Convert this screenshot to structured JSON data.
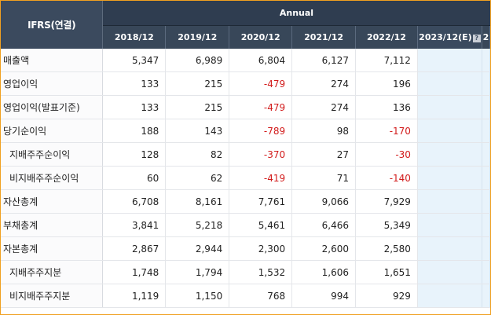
{
  "header": {
    "corner_label": "IFRS(연결)",
    "group_label": "Annual",
    "years": [
      "2018/12",
      "2019/12",
      "2020/12",
      "2021/12",
      "2022/12",
      "2023/12(E)",
      "2"
    ],
    "help_icon": "question-icon"
  },
  "rows": [
    {
      "label": "매출액",
      "values": [
        "5,347",
        "6,989",
        "6,804",
        "6,127",
        "7,112"
      ],
      "sub": false
    },
    {
      "label": "영업이익",
      "values": [
        "133",
        "215",
        "-479",
        "274",
        "196"
      ],
      "sub": false
    },
    {
      "label": "영업이익(발표기준)",
      "values": [
        "133",
        "215",
        "-479",
        "274",
        "136"
      ],
      "sub": false
    },
    {
      "label": "당기순이익",
      "values": [
        "188",
        "143",
        "-789",
        "98",
        "-170"
      ],
      "sub": false
    },
    {
      "label": "지배주주순이익",
      "values": [
        "128",
        "82",
        "-370",
        "27",
        "-30"
      ],
      "sub": true
    },
    {
      "label": "비지배주주순이익",
      "values": [
        "60",
        "62",
        "-419",
        "71",
        "-140"
      ],
      "sub": true
    },
    {
      "label": "자산총계",
      "values": [
        "6,708",
        "8,161",
        "7,761",
        "9,066",
        "7,929"
      ],
      "sub": false
    },
    {
      "label": "부채총계",
      "values": [
        "3,841",
        "5,218",
        "5,461",
        "6,466",
        "5,349"
      ],
      "sub": false
    },
    {
      "label": "자본총계",
      "values": [
        "2,867",
        "2,944",
        "2,300",
        "2,600",
        "2,580"
      ],
      "sub": false
    },
    {
      "label": "지배주주지분",
      "values": [
        "1,748",
        "1,794",
        "1,532",
        "1,606",
        "1,651"
      ],
      "sub": true
    },
    {
      "label": "비지배주주지분",
      "values": [
        "1,119",
        "1,150",
        "768",
        "994",
        "929"
      ],
      "sub": true
    }
  ],
  "colors": {
    "header_bg": "#384759",
    "estimate_bg": "#e8f3fb",
    "negative": "#d21b1b",
    "frame_border": "#f0a020"
  }
}
